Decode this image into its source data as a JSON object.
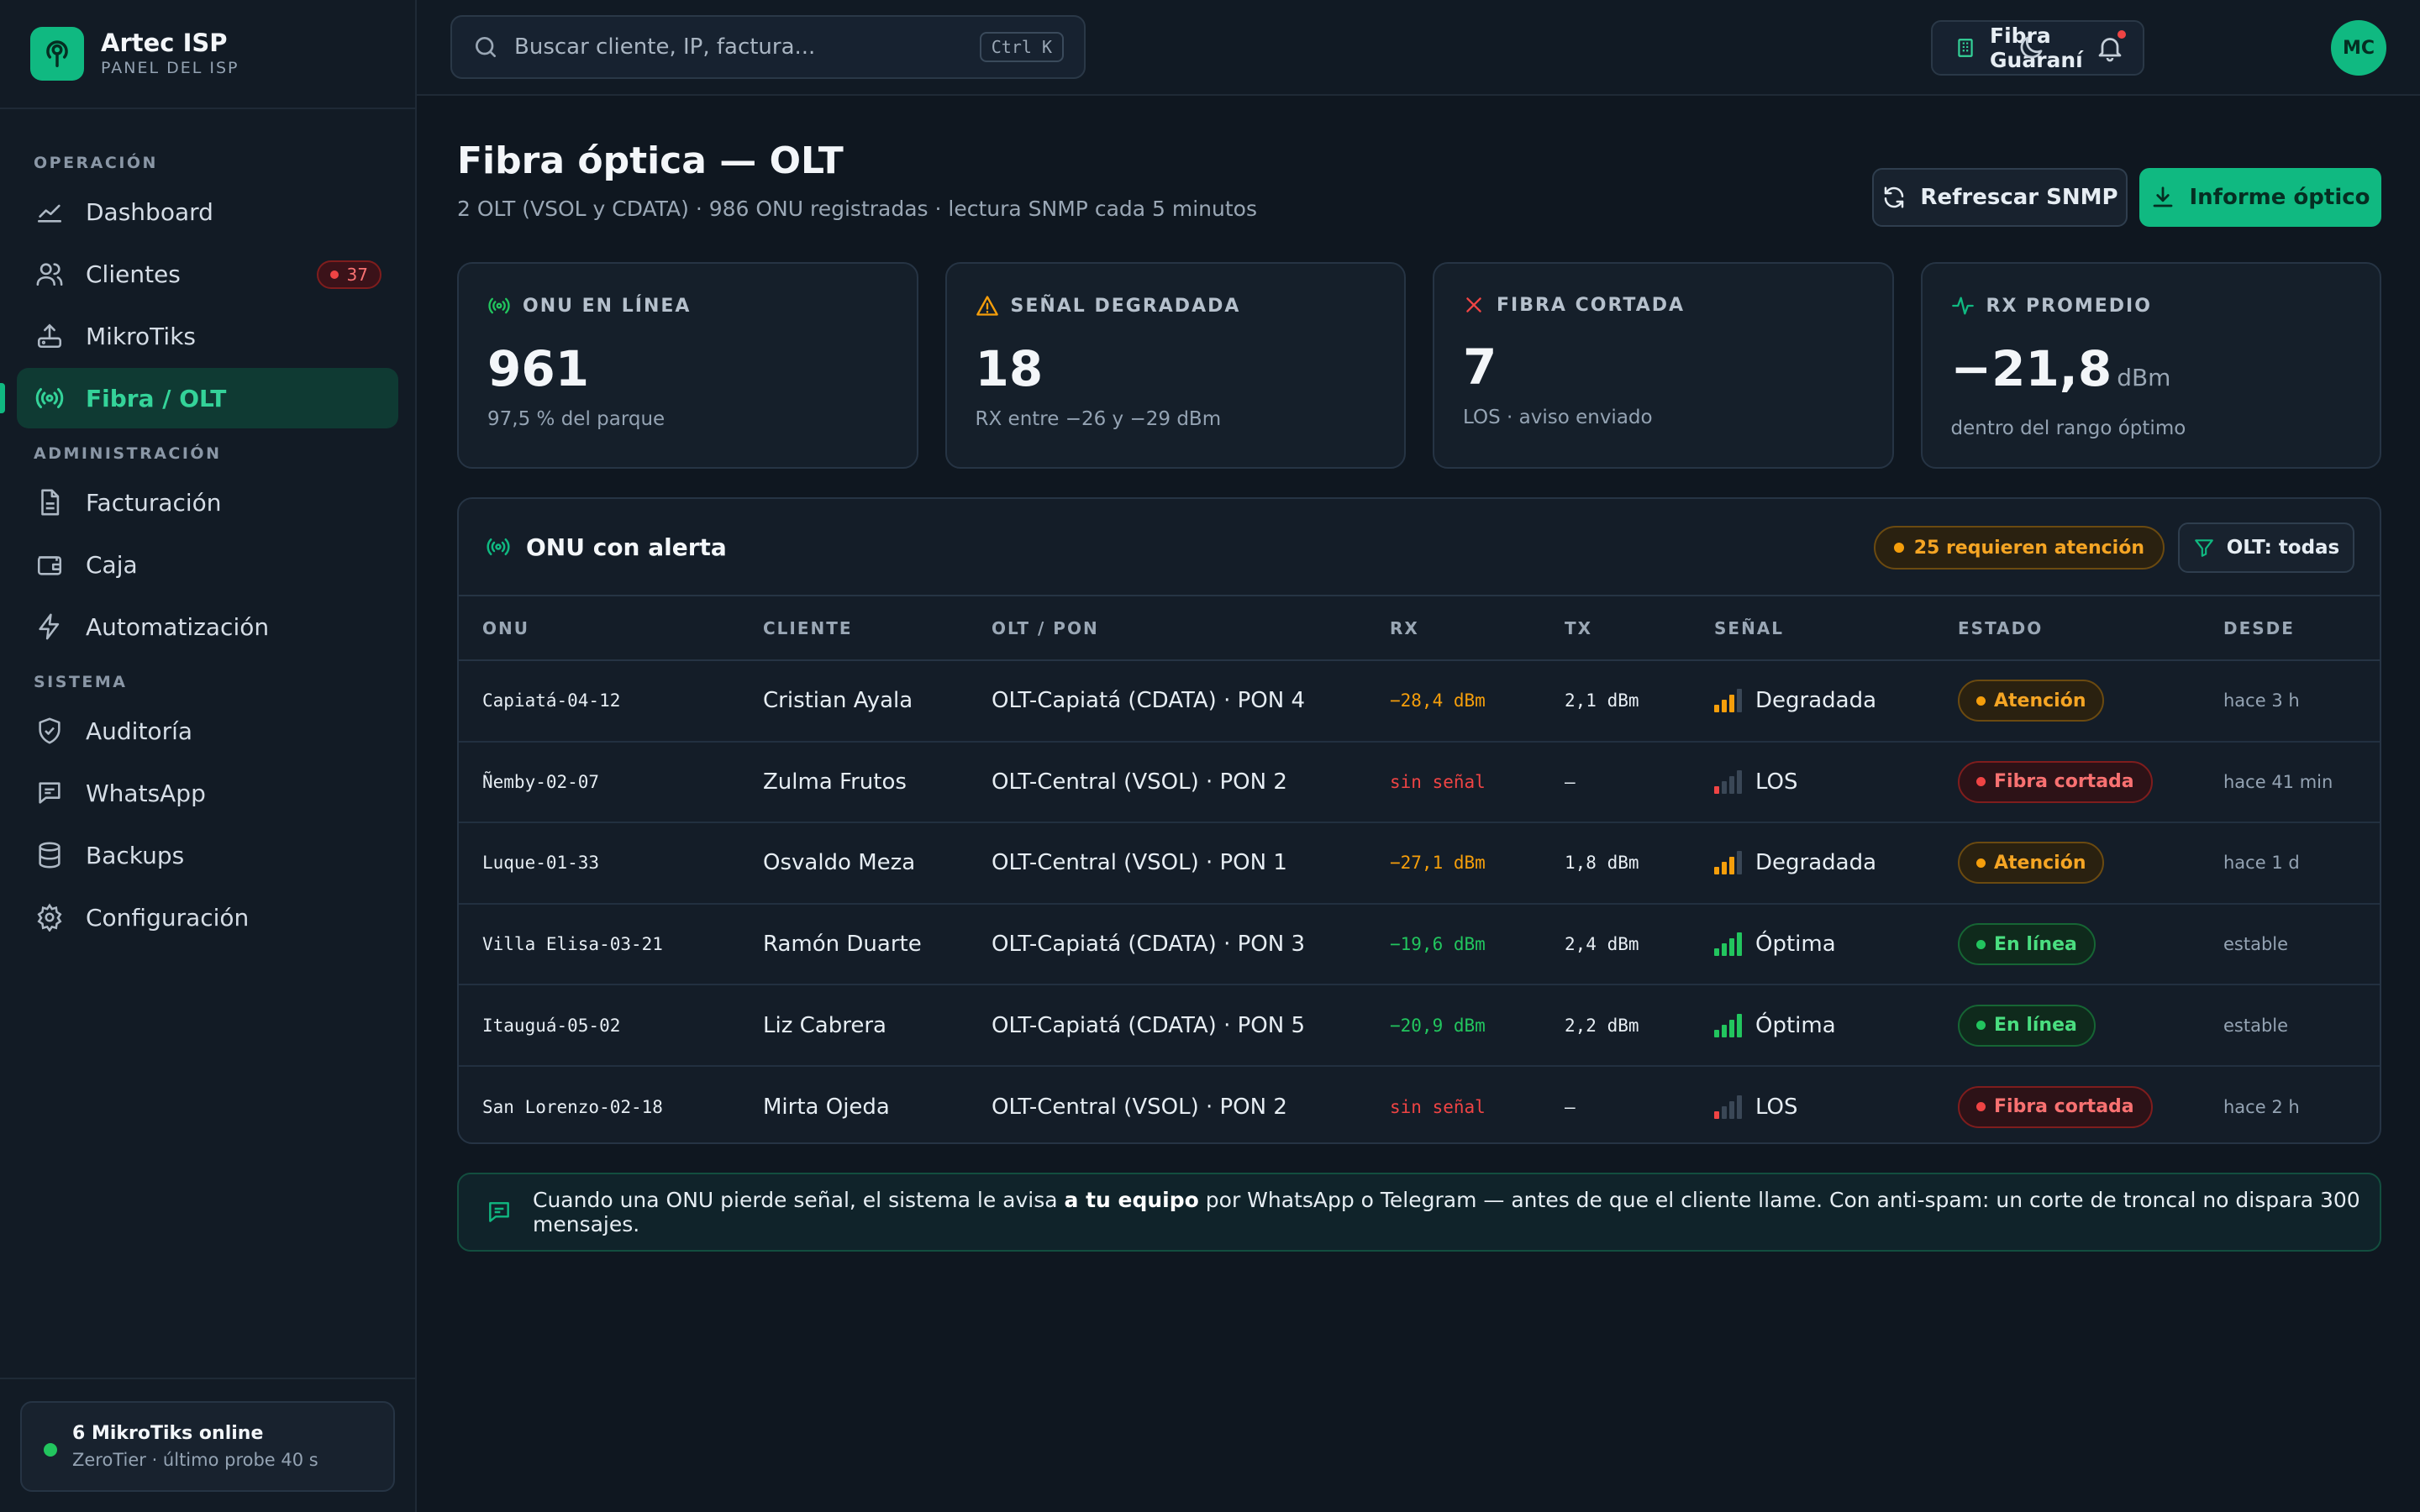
{
  "brand": {
    "name": "Artec ISP",
    "subtitle": "PANEL DEL ISP",
    "accent": "#10b981"
  },
  "sidebar": {
    "sections": [
      {
        "title": "OPERACIÓN",
        "items": [
          {
            "label": "Dashboard",
            "icon": "chart-line-icon"
          },
          {
            "label": "Clientes",
            "icon": "users-icon",
            "badge": "37"
          },
          {
            "label": "MikroTiks",
            "icon": "router-icon"
          },
          {
            "label": "Fibra / OLT",
            "icon": "broadcast-icon",
            "active": true
          }
        ]
      },
      {
        "title": "ADMINISTRACIÓN",
        "items": [
          {
            "label": "Facturación",
            "icon": "document-icon"
          },
          {
            "label": "Caja",
            "icon": "wallet-icon"
          },
          {
            "label": "Automatización",
            "icon": "bolt-icon"
          }
        ]
      },
      {
        "title": "SISTEMA",
        "items": [
          {
            "label": "Auditoría",
            "icon": "shield-icon"
          },
          {
            "label": "WhatsApp",
            "icon": "chat-icon"
          },
          {
            "label": "Backups",
            "icon": "database-icon"
          },
          {
            "label": "Configuración",
            "icon": "gear-icon"
          }
        ]
      }
    ],
    "footer": {
      "title": "6 MikroTiks online",
      "subtitle": "ZeroTier · último probe 40 s"
    }
  },
  "topbar": {
    "search_placeholder": "Buscar cliente, IP, factura...",
    "shortcut": "Ctrl K",
    "org": "Fibra Guaraní",
    "avatar_initials": "MC"
  },
  "page": {
    "title": "Fibra óptica — OLT",
    "subtitle": "2 OLT (VSOL y CDATA) · 986 ONU registradas · lectura SNMP cada 5 minutos",
    "refresh_label": "Refrescar SNMP",
    "report_label": "Informe óptico"
  },
  "kpis": [
    {
      "label": "ONU EN LÍNEA",
      "value": "961",
      "unit": "",
      "sub": "97,5 % del parque",
      "color": "#22c55e"
    },
    {
      "label": "SEÑAL DEGRADADA",
      "value": "18",
      "unit": "",
      "sub": "RX entre −26 y −29 dBm",
      "color": "#f59e0b"
    },
    {
      "label": "FIBRA CORTADA",
      "value": "7",
      "unit": "",
      "sub": "LOS · aviso enviado",
      "color": "#ef4444"
    },
    {
      "label": "RX PROMEDIO",
      "value": "−21,8",
      "unit": "dBm",
      "sub": "dentro del rango óptimo",
      "color": "#10b981"
    }
  ],
  "table": {
    "title": "ONU con alerta",
    "attention": "25 requieren atención",
    "filter": "OLT: todas",
    "columns": [
      "ONU",
      "CLIENTE",
      "OLT / PON",
      "RX",
      "TX",
      "SEÑAL",
      "ESTADO",
      "DESDE"
    ],
    "rows": [
      {
        "onu": "Capiatá-04-12",
        "cliente": "Cristian Ayala",
        "olt": "OLT-Capiatá (CDATA) · PON 4",
        "rx": "−28,4 dBm",
        "tx": "2,1 dBm",
        "signal": "Degradada",
        "signal_level": 3,
        "estado": "Atención",
        "desde": "hace 3 h",
        "kind": "warn"
      },
      {
        "onu": "Ñemby-02-07",
        "cliente": "Zulma Frutos",
        "olt": "OLT-Central (VSOL) · PON 2",
        "rx": "sin señal",
        "tx": "—",
        "signal": "LOS",
        "signal_level": 1,
        "estado": "Fibra cortada",
        "desde": "hace 41 min",
        "kind": "bad"
      },
      {
        "onu": "Luque-01-33",
        "cliente": "Osvaldo Meza",
        "olt": "OLT-Central (VSOL) · PON 1",
        "rx": "−27,1 dBm",
        "tx": "1,8 dBm",
        "signal": "Degradada",
        "signal_level": 3,
        "estado": "Atención",
        "desde": "hace 1 d",
        "kind": "warn"
      },
      {
        "onu": "Villa Elisa-03-21",
        "cliente": "Ramón Duarte",
        "olt": "OLT-Capiatá (CDATA) · PON 3",
        "rx": "−19,6 dBm",
        "tx": "2,4 dBm",
        "signal": "Óptima",
        "signal_level": 4,
        "estado": "En línea",
        "desde": "estable",
        "kind": "ok"
      },
      {
        "onu": "Itauguá-05-02",
        "cliente": "Liz Cabrera",
        "olt": "OLT-Capiatá (CDATA) · PON 5",
        "rx": "−20,9 dBm",
        "tx": "2,2 dBm",
        "signal": "Óptima",
        "signal_level": 4,
        "estado": "En línea",
        "desde": "estable",
        "kind": "ok"
      },
      {
        "onu": "San Lorenzo-02-18",
        "cliente": "Mirta Ojeda",
        "olt": "OLT-Central (VSOL) · PON 2",
        "rx": "sin señal",
        "tx": "—",
        "signal": "LOS",
        "signal_level": 1,
        "estado": "Fibra cortada",
        "desde": "hace 2 h",
        "kind": "bad"
      }
    ]
  },
  "notice": {
    "before": "Cuando una ONU pierde señal, el sistema le avisa ",
    "bold": "a tu equipo",
    "after": " por WhatsApp o Telegram — antes de que el cliente llame. Con anti-spam: un corte de troncal no dispara 300 mensajes."
  },
  "colors": {
    "warn": "#f59e0b",
    "bad": "#ef4444",
    "ok": "#22c55e"
  }
}
